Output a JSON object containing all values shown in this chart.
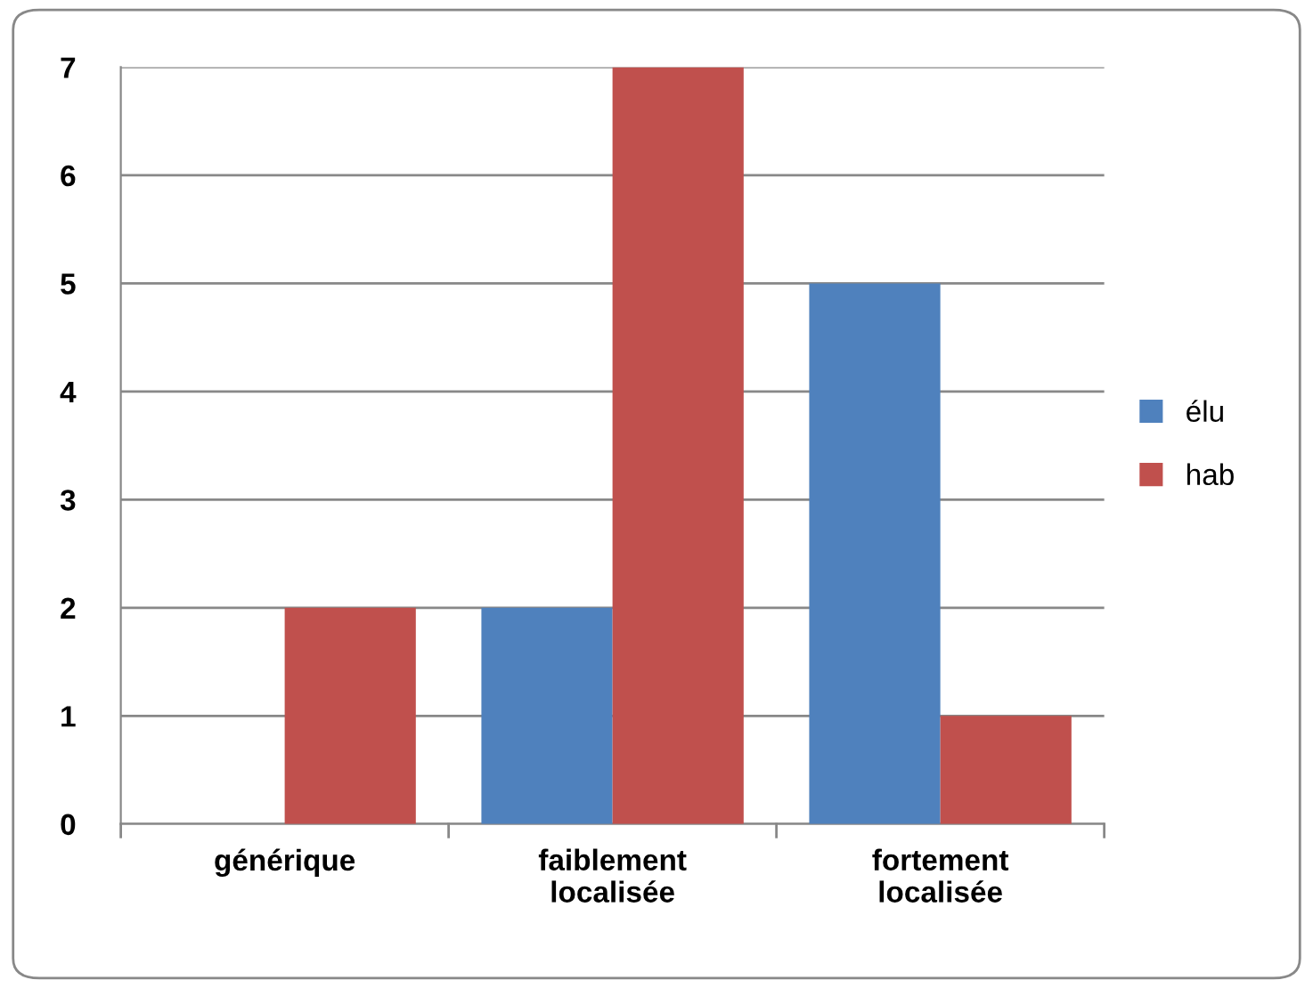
{
  "chart_data": {
    "type": "bar",
    "categories": [
      "générique",
      "faiblement localisée",
      "fortement localisée"
    ],
    "series": [
      {
        "name": "élu",
        "color": "#4f81bd",
        "values": [
          0,
          2,
          5
        ]
      },
      {
        "name": "hab",
        "color": "#c0504d",
        "values": [
          2,
          7,
          1
        ]
      }
    ],
    "ylim": [
      0,
      7
    ],
    "yticks": [
      0,
      1,
      2,
      3,
      4,
      5,
      6,
      7
    ],
    "grid": "y",
    "legend": "right"
  }
}
